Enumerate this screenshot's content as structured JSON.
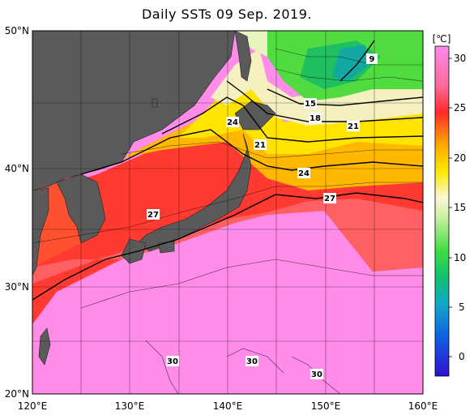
{
  "title": "Daily SSTs 09 Sep. 2019.",
  "map": {
    "lon_labels": [
      "120°E",
      "130°E",
      "140°E",
      "150°E",
      "160°E"
    ],
    "lat_labels": [
      "50°N",
      "40°N",
      "30°N",
      "20°N"
    ],
    "extent": {
      "lon": [
        120,
        160
      ],
      "lat": [
        20,
        50
      ]
    }
  },
  "isotherm_labels": [
    "9",
    "15",
    "18",
    "21",
    "24",
    "21",
    "24",
    "27",
    "27",
    "30",
    "30",
    "30"
  ],
  "colorbar": {
    "unit": "[℃]",
    "ticks": [
      "30",
      "25",
      "20",
      "15",
      "10",
      "5",
      "0"
    ],
    "colors": [
      "#ff8df0",
      "#ff2a3a",
      "#ffdc00",
      "#f0f4c8",
      "#22d23c",
      "#1ab0d8",
      "#2014e0"
    ]
  },
  "colors": {
    "land": "#5a5a5a",
    "warm": "#ff8de8",
    "hot": "#ff3a30",
    "mid": "#f0d010",
    "cool": "#30d050"
  }
}
